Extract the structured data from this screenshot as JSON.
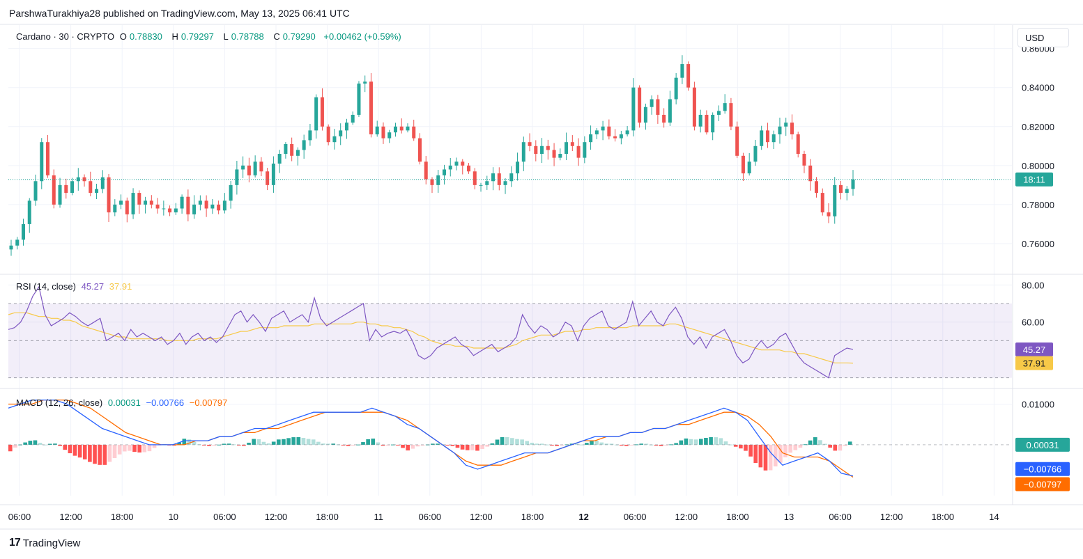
{
  "header": {
    "published": "ParshwaTurakhiya28 published on TradingView.com, May 13, 2025 06:41 UTC"
  },
  "legend": {
    "symbol": "Cardano · 30 · CRYPTO",
    "open_label": "O",
    "open": "0.78830",
    "high_label": "H",
    "high": "0.79297",
    "low_label": "L",
    "low": "0.78788",
    "close_label": "C",
    "close": "0.79290",
    "change": "+0.00462 (+0.59%)"
  },
  "currency_button": "USD",
  "price_countdown": "18:11",
  "brand": {
    "name": "TradingView"
  },
  "colors": {
    "up": "#26a69a",
    "down": "#ef5350",
    "rsi": "#7e57c2",
    "rsi_ma": "#f7c948",
    "macd": "#2962ff",
    "signal": "#ff6d00",
    "hist_up": "#26a69a",
    "hist_up_light": "#b2dfdb",
    "hist_down": "#ff5252",
    "hist_down_light": "#ffcdd2"
  },
  "rsi": {
    "label": "RSI (14, close)",
    "value": "45.27",
    "ma": "37.91",
    "upper": 70,
    "lower": 30
  },
  "macd": {
    "label": "MACD (12, 26, close)",
    "hist": "0.00031",
    "macd": "−0.00766",
    "signal": "−0.00797"
  },
  "chart_data": {
    "type": "candlestick",
    "symbol": "Cardano",
    "interval": "30",
    "price_axis": {
      "ticks": [
        "0.86000",
        "0.84000",
        "0.82000",
        "0.80000",
        "0.78000",
        "0.76000"
      ],
      "range": [
        0.745,
        0.872
      ]
    },
    "rsi_axis": {
      "ticks": [
        "80.00",
        "60.00"
      ],
      "range": [
        25,
        85
      ]
    },
    "macd_axis": {
      "ticks": [
        "0.01000"
      ],
      "range": [
        -0.0125,
        0.0135
      ]
    },
    "time_axis": [
      {
        "label": "06:00",
        "bold": false
      },
      {
        "label": "12:00",
        "bold": false
      },
      {
        "label": "18:00",
        "bold": false
      },
      {
        "label": "10",
        "bold": false
      },
      {
        "label": "06:00",
        "bold": false
      },
      {
        "label": "12:00",
        "bold": false
      },
      {
        "label": "18:00",
        "bold": false
      },
      {
        "label": "11",
        "bold": false
      },
      {
        "label": "06:00",
        "bold": false
      },
      {
        "label": "12:00",
        "bold": false
      },
      {
        "label": "18:00",
        "bold": false
      },
      {
        "label": "12",
        "bold": true
      },
      {
        "label": "06:00",
        "bold": false
      },
      {
        "label": "12:00",
        "bold": false
      },
      {
        "label": "18:00",
        "bold": false
      },
      {
        "label": "13",
        "bold": false
      },
      {
        "label": "06:00",
        "bold": false
      },
      {
        "label": "12:00",
        "bold": false
      },
      {
        "label": "18:00",
        "bold": false
      },
      {
        "label": "14",
        "bold": false
      }
    ],
    "close_path": [
      0.759,
      0.762,
      0.77,
      0.782,
      0.792,
      0.812,
      0.795,
      0.78,
      0.79,
      0.786,
      0.792,
      0.794,
      0.792,
      0.786,
      0.788,
      0.794,
      0.776,
      0.78,
      0.782,
      0.775,
      0.786,
      0.78,
      0.782,
      0.78,
      0.778,
      0.778,
      0.776,
      0.778,
      0.784,
      0.775,
      0.78,
      0.782,
      0.778,
      0.78,
      0.777,
      0.782,
      0.79,
      0.798,
      0.8,
      0.795,
      0.802,
      0.797,
      0.79,
      0.801,
      0.806,
      0.811,
      0.805,
      0.808,
      0.813,
      0.818,
      0.835,
      0.82,
      0.812,
      0.815,
      0.818,
      0.822,
      0.826,
      0.842,
      0.843,
      0.816,
      0.82,
      0.814,
      0.817,
      0.82,
      0.818,
      0.82,
      0.814,
      0.802,
      0.793,
      0.79,
      0.795,
      0.798,
      0.8,
      0.802,
      0.8,
      0.797,
      0.79,
      0.79,
      0.792,
      0.796,
      0.79,
      0.792,
      0.796,
      0.802,
      0.812,
      0.81,
      0.806,
      0.81,
      0.808,
      0.804,
      0.806,
      0.812,
      0.81,
      0.804,
      0.812,
      0.816,
      0.818,
      0.82,
      0.815,
      0.814,
      0.816,
      0.818,
      0.84,
      0.822,
      0.83,
      0.834,
      0.826,
      0.822,
      0.834,
      0.845,
      0.852,
      0.84,
      0.82,
      0.826,
      0.817,
      0.826,
      0.828,
      0.832,
      0.82,
      0.805,
      0.796,
      0.802,
      0.81,
      0.818,
      0.812,
      0.816,
      0.82,
      0.822,
      0.816,
      0.806,
      0.8,
      0.792,
      0.786,
      0.776,
      0.774,
      0.79,
      0.786,
      0.788,
      0.7929
    ],
    "rsi_path": [
      56,
      57,
      60,
      66,
      74,
      79,
      64,
      58,
      60,
      62,
      65,
      63,
      60,
      58,
      60,
      62,
      50,
      52,
      54,
      50,
      56,
      52,
      54,
      52,
      50,
      52,
      48,
      50,
      54,
      48,
      52,
      54,
      50,
      52,
      49,
      52,
      58,
      64,
      66,
      60,
      64,
      60,
      55,
      62,
      64,
      66,
      60,
      62,
      64,
      60,
      73,
      62,
      58,
      60,
      62,
      64,
      66,
      68,
      70,
      50,
      56,
      52,
      54,
      55,
      54,
      56,
      50,
      42,
      40,
      42,
      46,
      48,
      50,
      52,
      48,
      46,
      42,
      44,
      46,
      48,
      44,
      46,
      48,
      52,
      64,
      58,
      54,
      58,
      56,
      52,
      54,
      60,
      58,
      50,
      58,
      62,
      64,
      66,
      58,
      56,
      58,
      60,
      71,
      58,
      62,
      66,
      60,
      58,
      64,
      68,
      62,
      52,
      48,
      52,
      46,
      52,
      54,
      56,
      50,
      42,
      38,
      40,
      46,
      50,
      46,
      48,
      52,
      54,
      48,
      42,
      38,
      36,
      34,
      32,
      30,
      42,
      44,
      46,
      45.27
    ],
    "rsi_ma_path": [
      64,
      65,
      65,
      65,
      64,
      63,
      63,
      62,
      62,
      61,
      61,
      60,
      58,
      57,
      56,
      55,
      54,
      53,
      52,
      52,
      51,
      51,
      51,
      51,
      51,
      51,
      50,
      50,
      50,
      50,
      50,
      51,
      51,
      51,
      51,
      52,
      53,
      54,
      55,
      55,
      56,
      57,
      57,
      57,
      57,
      58,
      58,
      58,
      58,
      58,
      59,
      59,
      59,
      59,
      59,
      59,
      59,
      60,
      60,
      59,
      59,
      58,
      58,
      57,
      57,
      56,
      55,
      53,
      52,
      50,
      49,
      48,
      48,
      47,
      47,
      47,
      46,
      46,
      46,
      46,
      46,
      46,
      47,
      48,
      50,
      51,
      52,
      53,
      53,
      53,
      54,
      55,
      55,
      55,
      56,
      56,
      57,
      57,
      57,
      57,
      57,
      57,
      58,
      58,
      58,
      58,
      58,
      58,
      59,
      59,
      58,
      57,
      56,
      55,
      54,
      53,
      52,
      51,
      50,
      49,
      48,
      47,
      46,
      45,
      45,
      45,
      45,
      44,
      44,
      43,
      43,
      42,
      41,
      40,
      39,
      38,
      38,
      38,
      37.91
    ],
    "macd_path": [
      0.009,
      0.01,
      0.011,
      0.011,
      0.011,
      0.01,
      0.008,
      0.006,
      0.004,
      0.003,
      0.002,
      0.001,
      0.0,
      0.0,
      0.0,
      0.001,
      0.001,
      0.001,
      0.002,
      0.002,
      0.003,
      0.004,
      0.004,
      0.005,
      0.006,
      0.007,
      0.008,
      0.008,
      0.008,
      0.008,
      0.008,
      0.009,
      0.008,
      0.007,
      0.005,
      0.004,
      0.002,
      0.0,
      -0.002,
      -0.005,
      -0.006,
      -0.005,
      -0.004,
      -0.003,
      -0.002,
      -0.002,
      -0.002,
      -0.001,
      0.0,
      0.001,
      0.002,
      0.002,
      0.002,
      0.003,
      0.003,
      0.004,
      0.004,
      0.005,
      0.006,
      0.007,
      0.008,
      0.009,
      0.008,
      0.006,
      0.002,
      -0.002,
      -0.005,
      -0.004,
      -0.003,
      -0.002,
      -0.004,
      -0.007,
      -0.00766
    ],
    "signal_path": [
      0.01,
      0.01,
      0.01,
      0.011,
      0.011,
      0.011,
      0.01,
      0.009,
      0.007,
      0.005,
      0.003,
      0.002,
      0.001,
      0.0,
      0.0,
      0.0,
      0.001,
      0.001,
      0.002,
      0.002,
      0.003,
      0.003,
      0.004,
      0.004,
      0.005,
      0.006,
      0.007,
      0.008,
      0.008,
      0.008,
      0.008,
      0.008,
      0.008,
      0.007,
      0.006,
      0.004,
      0.002,
      0.0,
      -0.002,
      -0.004,
      -0.005,
      -0.005,
      -0.005,
      -0.004,
      -0.003,
      -0.002,
      -0.002,
      -0.001,
      0.0,
      0.001,
      0.001,
      0.002,
      0.002,
      0.003,
      0.003,
      0.004,
      0.004,
      0.005,
      0.005,
      0.006,
      0.007,
      0.008,
      0.008,
      0.007,
      0.005,
      0.002,
      -0.002,
      -0.003,
      -0.003,
      -0.003,
      -0.004,
      -0.006,
      -0.00797
    ]
  }
}
